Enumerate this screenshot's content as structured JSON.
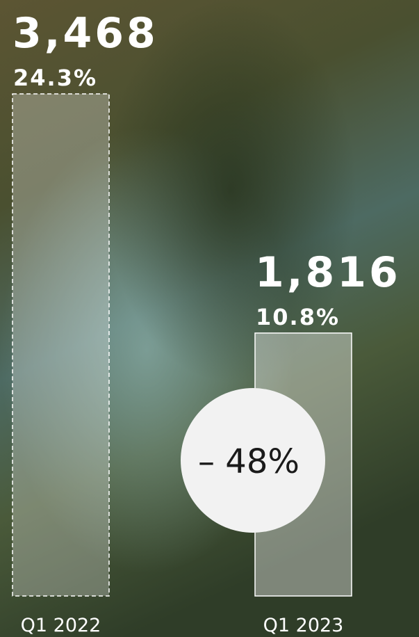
{
  "chart_data": {
    "type": "bar",
    "categories": [
      "Q1 2022",
      "Q1 2023"
    ],
    "values": [
      3468,
      1816
    ],
    "value_labels": [
      "3,468",
      "1,816"
    ],
    "percent_labels": [
      "24.3%",
      "10.8%"
    ],
    "change_label": "– 48%"
  }
}
